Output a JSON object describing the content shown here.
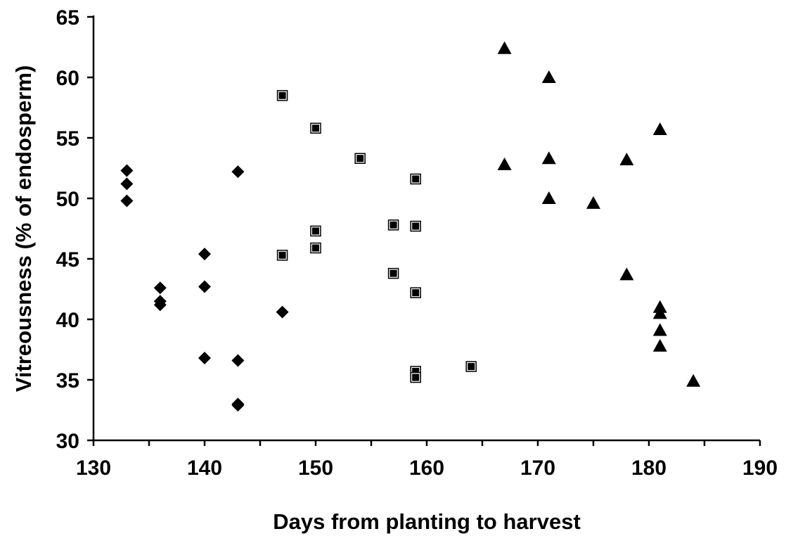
{
  "chart_data": {
    "type": "scatter",
    "title": "",
    "xlabel": "Days from planting to harvest",
    "ylabel": "Vitreousness (% of endosperm)",
    "xlim": [
      130,
      190
    ],
    "ylim": [
      30,
      65
    ],
    "x_major_ticks": [
      130,
      140,
      150,
      160,
      170,
      180,
      190
    ],
    "x_minor_step": 5,
    "y_ticks": [
      30,
      35,
      40,
      45,
      50,
      55,
      60,
      65
    ],
    "grid": false,
    "legend": "none",
    "series": [
      {
        "marker": "diamond",
        "color": "#000000",
        "points": [
          [
            133,
            52.3
          ],
          [
            133,
            51.2
          ],
          [
            133,
            49.8
          ],
          [
            136,
            42.6
          ],
          [
            136,
            41.5
          ],
          [
            136,
            41.2
          ],
          [
            140,
            45.4
          ],
          [
            140,
            42.7
          ],
          [
            140,
            36.8
          ],
          [
            143,
            52.2
          ],
          [
            143,
            36.6
          ],
          [
            143,
            33.0
          ],
          [
            143,
            32.9
          ],
          [
            147,
            40.6
          ]
        ]
      },
      {
        "marker": "square",
        "color": "#000000",
        "points": [
          [
            147,
            58.5
          ],
          [
            147,
            45.3
          ],
          [
            150,
            55.8
          ],
          [
            150,
            47.3
          ],
          [
            150,
            45.9
          ],
          [
            154,
            53.3
          ],
          [
            157,
            47.8
          ],
          [
            157,
            43.8
          ],
          [
            159,
            51.6
          ],
          [
            159,
            47.7
          ],
          [
            159,
            42.2
          ],
          [
            159,
            35.7
          ],
          [
            159,
            35.2
          ],
          [
            164,
            36.1
          ]
        ]
      },
      {
        "marker": "triangle",
        "color": "#000000",
        "points": [
          [
            167,
            62.4
          ],
          [
            167,
            52.8
          ],
          [
            171,
            60.0
          ],
          [
            171,
            53.3
          ],
          [
            171,
            50.0
          ],
          [
            175,
            49.6
          ],
          [
            178,
            53.2
          ],
          [
            178,
            43.7
          ],
          [
            181,
            55.7
          ],
          [
            181,
            41.0
          ],
          [
            181,
            40.5
          ],
          [
            181,
            39.1
          ],
          [
            181,
            37.8
          ],
          [
            184,
            34.9
          ]
        ]
      }
    ]
  }
}
